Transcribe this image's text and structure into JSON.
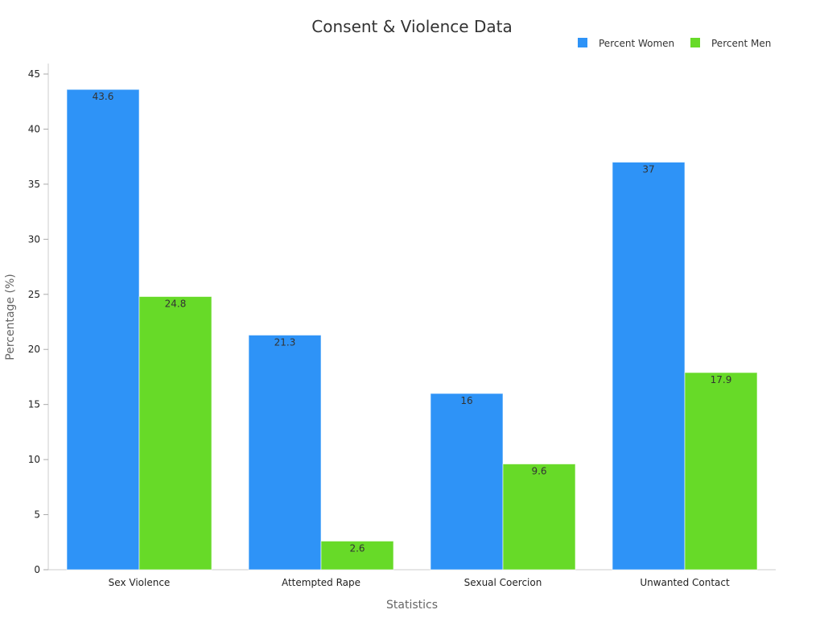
{
  "chart_data": {
    "type": "bar",
    "title": "Consent & Violence Data",
    "xlabel": "Statistics",
    "ylabel": "Percentage (%)",
    "categories": [
      "Sex Violence",
      "Attempted Rape",
      "Sexual Coercion",
      "Unwanted Contact"
    ],
    "series": [
      {
        "name": "Percent Women",
        "color": "#2E93F7",
        "values": [
          43.6,
          21.3,
          16,
          37
        ],
        "labels": [
          "43.6",
          "21.3",
          "16",
          "37"
        ]
      },
      {
        "name": "Percent Men",
        "color": "#67DA28",
        "values": [
          24.8,
          2.6,
          9.6,
          17.9
        ],
        "labels": [
          "24.8",
          "2.6",
          "9.6",
          "17.9"
        ]
      }
    ],
    "ylim": [
      0,
      45
    ],
    "yticks": [
      "0",
      "5",
      "10",
      "15",
      "20",
      "25",
      "30",
      "35",
      "40",
      "45"
    ],
    "grid": false,
    "legend_position": "top-right"
  }
}
